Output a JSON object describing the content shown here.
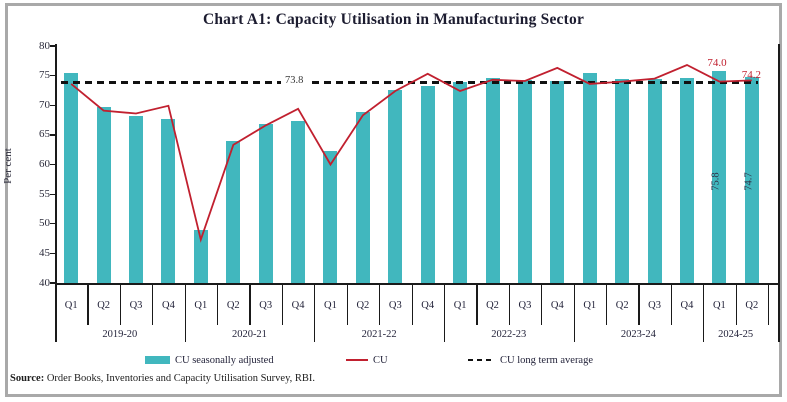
{
  "title": "Chart A1: Capacity Utilisation in Manufacturing Sector",
  "y_axis": {
    "label": "Per cent",
    "ticks": [
      80,
      75,
      70,
      65,
      60,
      55,
      50,
      45,
      40
    ]
  },
  "chart_data": {
    "type": "bar",
    "title": "Chart A1: Capacity Utilisation in Manufacturing Sector",
    "ylabel": "Per cent",
    "ylim": [
      40,
      80
    ],
    "grid": false,
    "legend_position": "bottom",
    "x_groups": [
      {
        "label": "2019-20",
        "quarters": [
          "Q1",
          "Q2",
          "Q3",
          "Q4"
        ]
      },
      {
        "label": "2020-21",
        "quarters": [
          "Q1",
          "Q2",
          "Q3",
          "Q4"
        ]
      },
      {
        "label": "2021-22",
        "quarters": [
          "Q1",
          "Q2",
          "Q3",
          "Q4"
        ]
      },
      {
        "label": "2022-23",
        "quarters": [
          "Q1",
          "Q2",
          "Q3",
          "Q4"
        ]
      },
      {
        "label": "2023-24",
        "quarters": [
          "Q1",
          "Q2",
          "Q3",
          "Q4"
        ]
      },
      {
        "label": "2024-25",
        "quarters": [
          "Q1",
          "Q2"
        ]
      }
    ],
    "series": [
      {
        "name": "CU seasonally adjusted",
        "type": "bar",
        "color": "#41b7be",
        "values": [
          75.4,
          69.7,
          68.2,
          67.6,
          49.0,
          64.0,
          66.8,
          67.4,
          62.2,
          68.9,
          72.5,
          73.2,
          74.0,
          74.6,
          74.3,
          74.1,
          75.4,
          74.4,
          74.5,
          74.6,
          75.8,
          74.7
        ]
      },
      {
        "name": "CU",
        "type": "line",
        "color": "#c1202f",
        "values": [
          73.6,
          69.1,
          68.6,
          69.9,
          47.3,
          63.3,
          66.6,
          69.4,
          60.0,
          68.3,
          72.4,
          75.3,
          72.4,
          74.3,
          74.1,
          76.3,
          73.6,
          74.0,
          74.5,
          76.8,
          74.0,
          74.2
        ]
      },
      {
        "name": "CU long term average",
        "type": "dashed-line",
        "color": "#111111",
        "value": 73.8
      }
    ],
    "annotations": {
      "avg_label": "73.8",
      "line_point_labels": [
        {
          "point_index": 20,
          "text": "74.0"
        },
        {
          "point_index": 21,
          "text": "74.2"
        }
      ],
      "bar_point_labels": [
        {
          "point_index": 20,
          "text": "75.8"
        },
        {
          "point_index": 21,
          "text": "74.7"
        }
      ]
    }
  },
  "legend": {
    "items": [
      {
        "label": "CU seasonally adjusted"
      },
      {
        "label": "CU"
      },
      {
        "label": "CU long term average"
      }
    ]
  },
  "source": {
    "prefix": "Source:",
    "text": " Order Books, Inventories and Capacity Utilisation Survey, RBI."
  }
}
